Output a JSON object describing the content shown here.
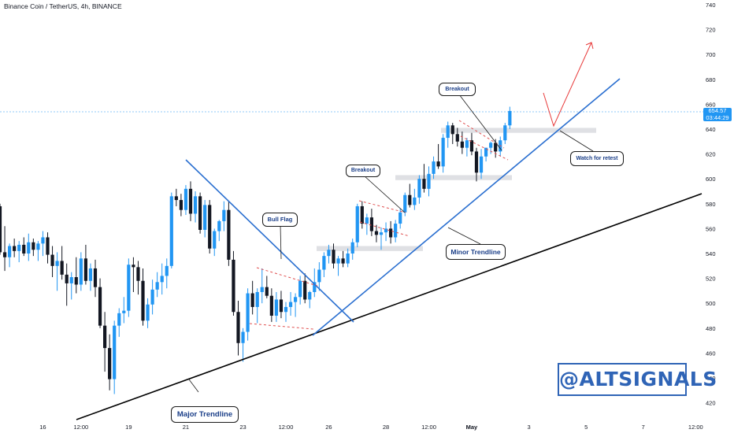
{
  "header": {
    "symbol_title": "Binance Coin / TetherUS, 4h, BINANCE"
  },
  "price_badge": {
    "price": "654.57",
    "countdown": "03:44:29"
  },
  "annotations": {
    "bull_flag": "Bull Flag",
    "breakout_1": "Breakout",
    "breakout_2": "Breakout",
    "watch_for_retest": "Watch for retest",
    "minor_trendline": "Minor Trendline",
    "major_trendline": "Major Trendline"
  },
  "watermark": "@ALTSIGNALS",
  "colors": {
    "bull": "#2196f3",
    "bear": "#131722",
    "trendline_blue": "#2a6fd0",
    "trendline_black": "#000000",
    "flag_dashed": "#e05050",
    "projection": "#e83a3a",
    "zone": "#d4d6db"
  },
  "chart_data": {
    "type": "candlestick",
    "title": "Binance Coin / TetherUS, 4h, BINANCE",
    "y_axis": {
      "ticks": [
        420,
        440,
        460,
        480,
        500,
        520,
        540,
        560,
        580,
        600,
        620,
        640,
        660,
        680,
        700,
        720,
        740
      ],
      "range": [
        410,
        743
      ]
    },
    "x_axis": {
      "tick_labels": [
        "16",
        "12:00",
        "19",
        "21",
        "23",
        "12:00",
        "26",
        "28",
        "12:00",
        "May",
        "3",
        "5",
        "7",
        "12:00"
      ],
      "tick_index": [
        9,
        17,
        27,
        39,
        51,
        60,
        69,
        81,
        90,
        99,
        111,
        123,
        135,
        146
      ]
    },
    "last_price": 654.57,
    "ohlc": [
      [
        578,
        580,
        539,
        541
      ],
      [
        541,
        562,
        526,
        537
      ],
      [
        537,
        548,
        529,
        546
      ],
      [
        546,
        552,
        537,
        542
      ],
      [
        542,
        550,
        533,
        547
      ],
      [
        547,
        553,
        538,
        540
      ],
      [
        540,
        556,
        534,
        549
      ],
      [
        549,
        552,
        538,
        543
      ],
      [
        543,
        550,
        534,
        548
      ],
      [
        548,
        558,
        538,
        553
      ],
      [
        553,
        557,
        532,
        539
      ],
      [
        539,
        546,
        521,
        530
      ],
      [
        530,
        541,
        510,
        534
      ],
      [
        534,
        546,
        519,
        523
      ],
      [
        523,
        532,
        498,
        516
      ],
      [
        516,
        525,
        503,
        521
      ],
      [
        521,
        537,
        508,
        515
      ],
      [
        515,
        541,
        510,
        536
      ],
      [
        536,
        547,
        515,
        518
      ],
      [
        518,
        532,
        510,
        528
      ],
      [
        528,
        535,
        505,
        513
      ],
      [
        513,
        520,
        480,
        482
      ],
      [
        482,
        493,
        445,
        464
      ],
      [
        464,
        475,
        430,
        439
      ],
      [
        439,
        486,
        427,
        482
      ],
      [
        482,
        496,
        473,
        492
      ],
      [
        492,
        505,
        484,
        494
      ],
      [
        494,
        536,
        489,
        531
      ],
      [
        531,
        537,
        509,
        529
      ],
      [
        529,
        534,
        507,
        518
      ],
      [
        518,
        528,
        482,
        486
      ],
      [
        486,
        504,
        480,
        499
      ],
      [
        499,
        519,
        491,
        511
      ],
      [
        511,
        525,
        505,
        517
      ],
      [
        517,
        532,
        507,
        522
      ],
      [
        522,
        536,
        512,
        530
      ],
      [
        530,
        589,
        528,
        586
      ],
      [
        586,
        592,
        578,
        583
      ],
      [
        583,
        588,
        570,
        575
      ],
      [
        575,
        595,
        571,
        592
      ],
      [
        592,
        598,
        566,
        572
      ],
      [
        572,
        590,
        565,
        586
      ],
      [
        586,
        589,
        556,
        559
      ],
      [
        559,
        583,
        553,
        579
      ],
      [
        579,
        583,
        540,
        544
      ],
      [
        544,
        560,
        538,
        558
      ],
      [
        558,
        567,
        550,
        566
      ],
      [
        566,
        582,
        558,
        575
      ],
      [
        575,
        582,
        530,
        535
      ],
      [
        535,
        542,
        490,
        493
      ],
      [
        493,
        502,
        458,
        468
      ],
      [
        468,
        480,
        453,
        477
      ],
      [
        477,
        512,
        470,
        508
      ],
      [
        508,
        518,
        491,
        497
      ],
      [
        497,
        512,
        484,
        509
      ],
      [
        509,
        528,
        500,
        513
      ],
      [
        513,
        522,
        504,
        506
      ],
      [
        506,
        512,
        485,
        490
      ],
      [
        490,
        509,
        485,
        503
      ],
      [
        503,
        510,
        488,
        493
      ],
      [
        493,
        501,
        485,
        497
      ],
      [
        497,
        509,
        490,
        501
      ],
      [
        501,
        508,
        489,
        505
      ],
      [
        505,
        522,
        499,
        518
      ],
      [
        518,
        524,
        500,
        503
      ],
      [
        503,
        510,
        496,
        509
      ],
      [
        509,
        528,
        505,
        517
      ],
      [
        517,
        533,
        510,
        527
      ],
      [
        527,
        541,
        521,
        538
      ],
      [
        538,
        547,
        532,
        543
      ],
      [
        543,
        548,
        528,
        532
      ],
      [
        532,
        538,
        522,
        536
      ],
      [
        536,
        542,
        529,
        532
      ],
      [
        532,
        544,
        529,
        540
      ],
      [
        540,
        552,
        535,
        549
      ],
      [
        549,
        580,
        545,
        578
      ],
      [
        578,
        582,
        560,
        564
      ],
      [
        564,
        572,
        555,
        569
      ],
      [
        569,
        576,
        554,
        558
      ],
      [
        558,
        563,
        549,
        555
      ],
      [
        555,
        561,
        543,
        557
      ],
      [
        557,
        565,
        550,
        560
      ],
      [
        560,
        566,
        548,
        553
      ],
      [
        553,
        567,
        549,
        564
      ],
      [
        564,
        576,
        560,
        573
      ],
      [
        573,
        589,
        570,
        587
      ],
      [
        587,
        596,
        577,
        579
      ],
      [
        579,
        592,
        575,
        585
      ],
      [
        585,
        603,
        580,
        600
      ],
      [
        600,
        612,
        589,
        592
      ],
      [
        592,
        610,
        586,
        604
      ],
      [
        604,
        618,
        600,
        614
      ],
      [
        614,
        628,
        608,
        610
      ],
      [
        610,
        636,
        605,
        633
      ],
      [
        633,
        646,
        625,
        643
      ],
      [
        643,
        645,
        628,
        636
      ],
      [
        636,
        641,
        626,
        630
      ],
      [
        630,
        638,
        620,
        625
      ],
      [
        625,
        633,
        618,
        631
      ],
      [
        631,
        637,
        619,
        622
      ],
      [
        622,
        625,
        598,
        605
      ],
      [
        605,
        624,
        600,
        618
      ],
      [
        618,
        625,
        614,
        625
      ],
      [
        625,
        630,
        620,
        629
      ],
      [
        629,
        632,
        617,
        622
      ],
      [
        622,
        634,
        618,
        631
      ],
      [
        631,
        645,
        628,
        643
      ],
      [
        643,
        658,
        640,
        654.57
      ]
    ]
  }
}
